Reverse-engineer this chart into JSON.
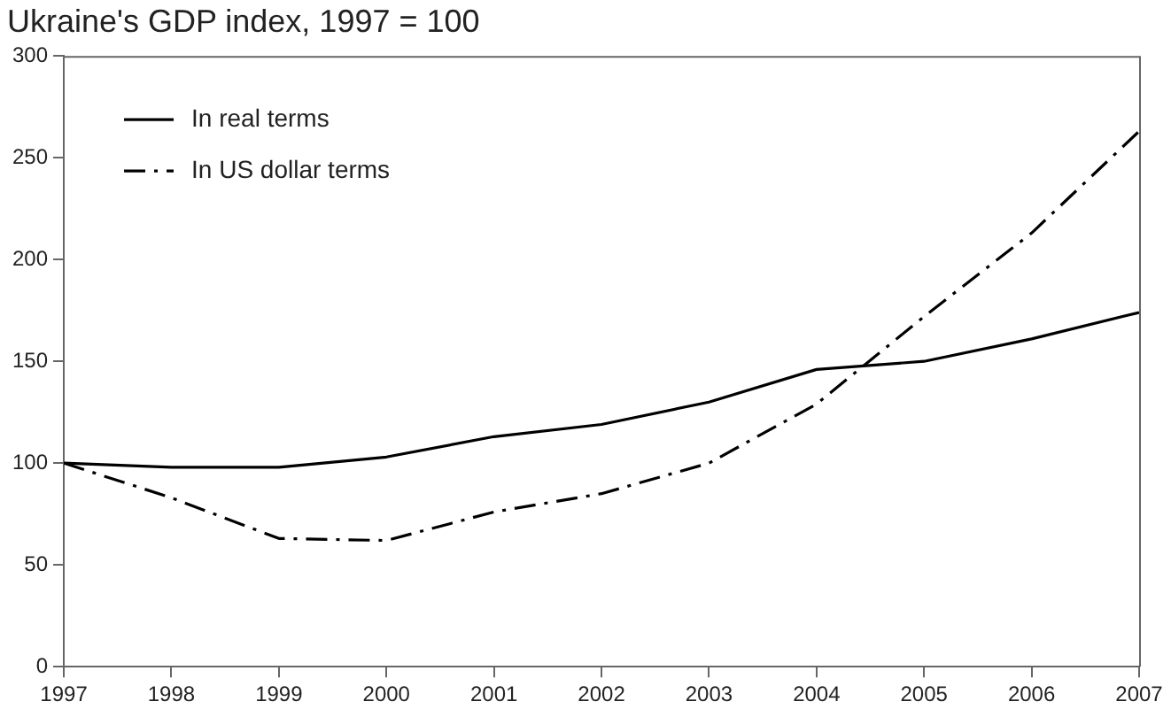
{
  "chart_data": {
    "type": "line",
    "title": "Ukraine's GDP index, 1997 = 100",
    "x": [
      1997,
      1998,
      1999,
      2000,
      2001,
      2002,
      2003,
      2004,
      2005,
      2006,
      2007
    ],
    "xlim": [
      1997,
      2007
    ],
    "xticks": [
      1997,
      1998,
      1999,
      2000,
      2001,
      2002,
      2003,
      2004,
      2005,
      2006,
      2007
    ],
    "ylim": [
      0,
      300
    ],
    "yticks": [
      0,
      50,
      100,
      150,
      200,
      250,
      300
    ],
    "grid": false,
    "legend": "top left",
    "marker": "none",
    "series": [
      {
        "name": "In real terms",
        "color": "#000000",
        "line_style": "solid",
        "values": [
          100,
          98,
          98,
          103,
          113,
          119,
          130,
          146,
          150,
          161,
          174
        ]
      },
      {
        "name": "In US dollar terms",
        "color": "#000000",
        "line_style": "dashed",
        "values": [
          100,
          83,
          63,
          62,
          76,
          85,
          100,
          129,
          172,
          213,
          263
        ]
      }
    ]
  }
}
